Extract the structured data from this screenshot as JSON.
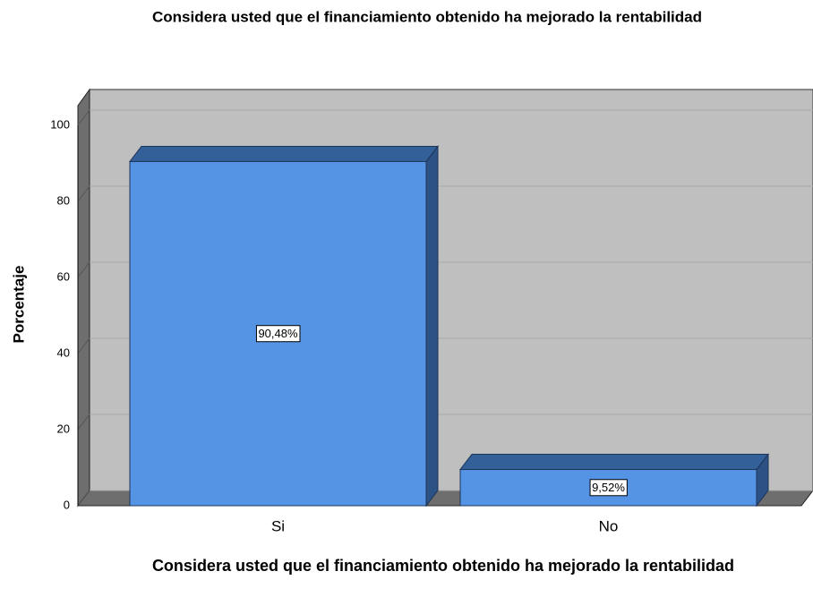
{
  "chart_data": {
    "type": "bar3d",
    "title": "Considera usted que el financiamiento obtenido ha mejorado la rentabilidad",
    "x_label": "Considera usted que el financiamiento obtenido ha mejorado la rentabilidad",
    "y_label": "Porcentaje",
    "categories": [
      "Si",
      "No"
    ],
    "values": [
      90.48,
      9.52
    ],
    "value_labels": [
      "90,48%",
      "9,52%"
    ],
    "color": "#5593e4",
    "ylim": [
      0,
      100
    ],
    "yticks": [
      0,
      20,
      40,
      60,
      80,
      100
    ],
    "grid": true
  }
}
